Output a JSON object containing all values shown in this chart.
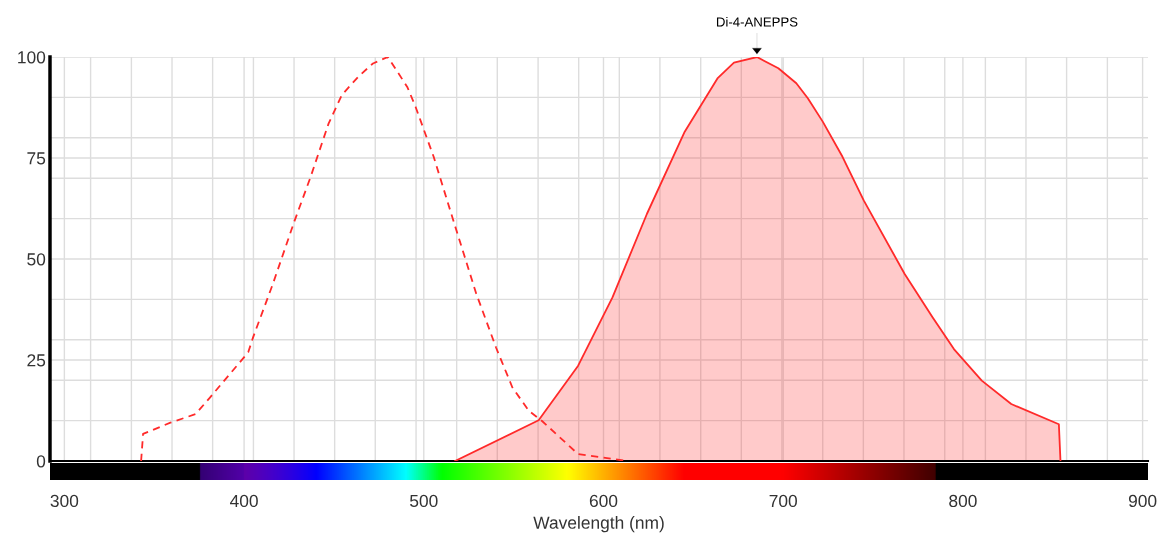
{
  "chart_data": {
    "type": "line",
    "xlabel": "Wavelength (nm)",
    "annotations": [
      {
        "text": "Di-4-ANEPPS",
        "x": 685.4,
        "y": 100
      }
    ],
    "xlim": [
      292,
      903
    ],
    "xticks": [
      300,
      400,
      500,
      600,
      700,
      800,
      900,
      {
        "value": 314.6,
        "label": null
      },
      {
        "value": 337.3,
        "label": null
      },
      {
        "value": 359.9,
        "label": null
      },
      {
        "value": 382.5,
        "label": null
      },
      {
        "value": 405.2,
        "label": null
      },
      {
        "value": 427.8,
        "label": null
      },
      {
        "value": 450.4,
        "label": null
      },
      {
        "value": 473.0,
        "label": null
      },
      {
        "value": 495.7,
        "label": null
      },
      {
        "value": 518.3,
        "label": null
      },
      {
        "value": 540.9,
        "label": null
      },
      {
        "value": 563.6,
        "label": null
      },
      {
        "value": 586.2,
        "label": null
      },
      {
        "value": 608.8,
        "label": null
      },
      {
        "value": 631.4,
        "label": null
      },
      {
        "value": 654.1,
        "label": null
      },
      {
        "value": 676.7,
        "label": null
      },
      {
        "value": 699.3,
        "label": null
      },
      {
        "value": 722.0,
        "label": null
      },
      {
        "value": 744.6,
        "label": null
      },
      {
        "value": 767.2,
        "label": null
      },
      {
        "value": 789.9,
        "label": null
      },
      {
        "value": 812.5,
        "label": null
      },
      {
        "value": 835.1,
        "label": null
      },
      {
        "value": 857.7,
        "label": null
      },
      {
        "value": 880.4,
        "label": null
      }
    ],
    "ylim": [
      0,
      100
    ],
    "yticks": [
      0,
      25,
      50,
      75,
      100,
      {
        "value": 10,
        "label": null
      },
      {
        "value": 20,
        "label": null
      },
      {
        "value": 30,
        "label": null
      },
      {
        "value": 40,
        "label": null
      },
      {
        "value": 60,
        "label": null
      },
      {
        "value": 70,
        "label": null
      },
      {
        "value": 80,
        "label": null
      },
      {
        "value": 90,
        "label": null
      }
    ],
    "grid": true,
    "series": [
      {
        "line_style": "dashed",
        "color": "#ff2a2a",
        "x": [
          342.7,
          343.8,
          359,
          373,
          381,
          402.3,
          405,
          416,
          427.8,
          437,
          447,
          454.4,
          463.5,
          471.7,
          480,
          490.8,
          495.4,
          505.5,
          516.4,
          529.2,
          540.2,
          549.3,
          558.5,
          565.8,
          585.9,
          613
        ],
        "values": [
          0,
          6.7,
          9.5,
          11.6,
          15.7,
          26.9,
          30.6,
          43.8,
          59.1,
          70.3,
          83.5,
          90.6,
          95.1,
          98.4,
          100,
          92.6,
          87.7,
          75.3,
          59.6,
          41.4,
          28.1,
          18.2,
          12.4,
          9.9,
          1.7,
          0
        ]
      },
      {
        "type": "area",
        "line_style": "solid",
        "color": "#ff2a2a",
        "x": [
          517.4,
          563.9,
          585.9,
          605,
          624.2,
          645.2,
          663.4,
          672.6,
          685.4,
          697.3,
          707.3,
          713.7,
          722,
          733,
          744.8,
          767.6,
          783.1,
          795,
          810.5,
          826.9,
          853.4,
          854.3
        ],
        "values": [
          0,
          10.1,
          23.6,
          40.5,
          61.2,
          81.5,
          94.7,
          98.6,
          100,
          97.2,
          93.5,
          89.8,
          84,
          75.3,
          64.5,
          46.3,
          35.6,
          27.7,
          19.9,
          14.1,
          9.1,
          0
        ]
      }
    ]
  }
}
